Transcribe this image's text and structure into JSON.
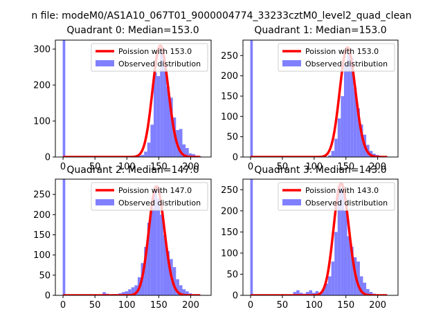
{
  "chart_data": {
    "type": "histogram",
    "suptitle": "n file: modeM0/AS1A10_067T01_9000004774_33233cztM0_level2_quad_clean",
    "colors": {
      "bars": "#8080ff",
      "curve": "#ff0000",
      "axes": "#000000",
      "legend_edge": "#cccccc"
    },
    "panels": [
      {
        "title": "Quadrant 0: Median=153.0",
        "xlim": [
          -12,
          232
        ],
        "ylim": [
          0,
          325
        ],
        "xticks": [
          0,
          50,
          100,
          150,
          200
        ],
        "xtick_labels": [
          "0",
          "50",
          "100",
          "150",
          "200"
        ],
        "yticks": [
          0,
          100,
          200,
          300
        ],
        "ytick_labels": [
          "0",
          "100",
          "200",
          "300"
        ],
        "legend": {
          "placement": "upper-right",
          "curve_label": "Poission with 153.0",
          "bars_label": "Observed distribution"
        },
        "bin_width": 5,
        "bins": [
          {
            "x": -0.5,
            "w": 4,
            "h": 325
          },
          {
            "x": 112,
            "h": 2
          },
          {
            "x": 117,
            "h": 4
          },
          {
            "x": 122,
            "h": 6
          },
          {
            "x": 127,
            "h": 15
          },
          {
            "x": 132,
            "h": 40
          },
          {
            "x": 137,
            "h": 90
          },
          {
            "x": 142,
            "h": 235
          },
          {
            "x": 147,
            "h": 225
          },
          {
            "x": 152,
            "h": 300
          },
          {
            "x": 157,
            "h": 255
          },
          {
            "x": 162,
            "h": 195
          },
          {
            "x": 167,
            "h": 165
          },
          {
            "x": 172,
            "h": 110
          },
          {
            "x": 177,
            "h": 75
          },
          {
            "x": 182,
            "h": 78
          },
          {
            "x": 187,
            "h": 35
          },
          {
            "x": 192,
            "h": 25
          },
          {
            "x": 197,
            "h": 10
          },
          {
            "x": 202,
            "h": 8
          },
          {
            "x": 207,
            "h": 4
          },
          {
            "x": 212,
            "h": 2
          }
        ],
        "poisson": {
          "mean": 153.0,
          "scale": 310,
          "x_range": [
            0,
            215
          ]
        }
      },
      {
        "title": "Quadrant 1: Median=153.0",
        "xlim": [
          -12,
          232
        ],
        "ylim": [
          0,
          288
        ],
        "xticks": [
          0,
          50,
          100,
          150,
          200
        ],
        "xtick_labels": [
          "0",
          "50",
          "100",
          "150",
          "200"
        ],
        "yticks": [
          0,
          50,
          100,
          150,
          200,
          250
        ],
        "ytick_labels": [
          "0",
          "50",
          "100",
          "150",
          "200",
          "250"
        ],
        "legend": {
          "placement": "upper-right",
          "curve_label": "Poission with 153.0",
          "bars_label": "Observed distribution"
        },
        "bin_width": 5,
        "bins": [
          {
            "x": -0.5,
            "w": 4,
            "h": 288
          },
          {
            "x": 122,
            "h": 4
          },
          {
            "x": 127,
            "h": 15
          },
          {
            "x": 132,
            "h": 45
          },
          {
            "x": 137,
            "h": 95
          },
          {
            "x": 142,
            "h": 150
          },
          {
            "x": 147,
            "h": 230
          },
          {
            "x": 152,
            "h": 255
          },
          {
            "x": 157,
            "h": 245
          },
          {
            "x": 162,
            "h": 170
          },
          {
            "x": 167,
            "h": 120
          },
          {
            "x": 172,
            "h": 80
          },
          {
            "x": 177,
            "h": 55
          },
          {
            "x": 182,
            "h": 30
          },
          {
            "x": 187,
            "h": 15
          },
          {
            "x": 192,
            "h": 8
          },
          {
            "x": 197,
            "h": 5
          },
          {
            "x": 202,
            "h": 3
          }
        ],
        "poisson": {
          "mean": 153.0,
          "scale": 270,
          "x_range": [
            0,
            215
          ]
        }
      },
      {
        "title": "Quadrant 2: Median=147.0",
        "xlim": [
          -12,
          232
        ],
        "ylim": [
          0,
          288
        ],
        "xticks": [
          0,
          50,
          100,
          150,
          200
        ],
        "xtick_labels": [
          "0",
          "50",
          "100",
          "150",
          "200"
        ],
        "yticks": [
          0,
          50,
          100,
          150,
          200,
          250
        ],
        "ytick_labels": [
          "0",
          "50",
          "100",
          "150",
          "200",
          "250"
        ],
        "legend": {
          "placement": "upper-right",
          "curve_label": "Poission with 147.0",
          "bars_label": "Observed distribution"
        },
        "bin_width": 5,
        "bins": [
          {
            "x": -0.5,
            "w": 4,
            "h": 288
          },
          {
            "x": 62,
            "h": 8
          },
          {
            "x": 67,
            "h": 4
          },
          {
            "x": 72,
            "h": 2
          },
          {
            "x": 77,
            "h": 3
          },
          {
            "x": 82,
            "h": 3
          },
          {
            "x": 87,
            "h": 5
          },
          {
            "x": 92,
            "h": 8
          },
          {
            "x": 97,
            "h": 10
          },
          {
            "x": 102,
            "h": 15
          },
          {
            "x": 107,
            "h": 20
          },
          {
            "x": 112,
            "h": 25
          },
          {
            "x": 117,
            "h": 45
          },
          {
            "x": 122,
            "h": 80
          },
          {
            "x": 127,
            "h": 120
          },
          {
            "x": 132,
            "h": 180
          },
          {
            "x": 137,
            "h": 215
          },
          {
            "x": 142,
            "h": 270
          },
          {
            "x": 147,
            "h": 240
          },
          {
            "x": 152,
            "h": 200
          },
          {
            "x": 157,
            "h": 150
          },
          {
            "x": 162,
            "h": 110
          },
          {
            "x": 167,
            "h": 90
          },
          {
            "x": 172,
            "h": 70
          },
          {
            "x": 177,
            "h": 40
          },
          {
            "x": 182,
            "h": 25
          },
          {
            "x": 187,
            "h": 15
          },
          {
            "x": 192,
            "h": 10
          },
          {
            "x": 197,
            "h": 5
          }
        ],
        "poisson": {
          "mean": 147.0,
          "scale": 270,
          "x_range": [
            0,
            215
          ]
        }
      },
      {
        "title": "Quadrant 3: Median=143.0",
        "xlim": [
          -12,
          232
        ],
        "ylim": [
          0,
          275
        ],
        "xticks": [
          0,
          50,
          100,
          150,
          200
        ],
        "xtick_labels": [
          "0",
          "50",
          "100",
          "150",
          "200"
        ],
        "yticks": [
          0,
          50,
          100,
          150,
          200,
          250
        ],
        "ytick_labels": [
          "0",
          "50",
          "100",
          "150",
          "200",
          "250"
        ],
        "legend": {
          "placement": "upper-right",
          "curve_label": "Poission with 143.0",
          "bars_label": "Observed distribution"
        },
        "bin_width": 5,
        "bins": [
          {
            "x": -0.5,
            "w": 4,
            "h": 275
          },
          {
            "x": 67,
            "h": 8
          },
          {
            "x": 72,
            "h": 12
          },
          {
            "x": 77,
            "h": 6
          },
          {
            "x": 82,
            "h": 4
          },
          {
            "x": 87,
            "h": 8
          },
          {
            "x": 92,
            "h": 12
          },
          {
            "x": 97,
            "h": 6
          },
          {
            "x": 102,
            "h": 10
          },
          {
            "x": 107,
            "h": 5
          },
          {
            "x": 112,
            "h": 15
          },
          {
            "x": 117,
            "h": 28
          },
          {
            "x": 122,
            "h": 45
          },
          {
            "x": 127,
            "h": 80
          },
          {
            "x": 132,
            "h": 150
          },
          {
            "x": 137,
            "h": 260
          },
          {
            "x": 142,
            "h": 255
          },
          {
            "x": 147,
            "h": 200
          },
          {
            "x": 152,
            "h": 140
          },
          {
            "x": 157,
            "h": 115
          },
          {
            "x": 162,
            "h": 90
          },
          {
            "x": 167,
            "h": 80
          },
          {
            "x": 172,
            "h": 45
          },
          {
            "x": 177,
            "h": 30
          },
          {
            "x": 182,
            "h": 15
          },
          {
            "x": 187,
            "h": 8
          },
          {
            "x": 192,
            "h": 4
          }
        ],
        "poisson": {
          "mean": 143.0,
          "scale": 265,
          "x_range": [
            0,
            215
          ]
        }
      }
    ]
  }
}
